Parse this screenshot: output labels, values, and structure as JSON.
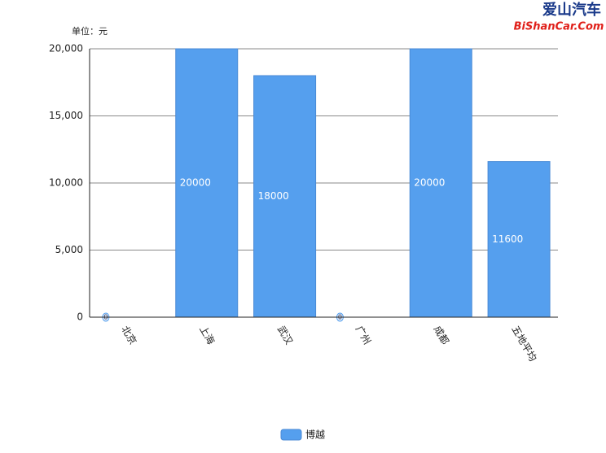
{
  "watermark": {
    "name": "爱山汽车",
    "site": "BiShanCar.Com"
  },
  "chart_data": {
    "type": "bar",
    "y_label": "单位：元",
    "categories": [
      "北京",
      "上海",
      "武汉",
      "广州",
      "成都",
      "五地平均"
    ],
    "series": [
      {
        "name": "博越",
        "color": "#559fee",
        "values": [
          0,
          20000,
          18000,
          0,
          20000,
          11600
        ]
      }
    ],
    "ylim": [
      0,
      20000
    ],
    "yticks": [
      0,
      {
        "value": 5000,
        "label": "5,000"
      },
      {
        "value": 10000,
        "label": "10,000"
      },
      {
        "value": 15000,
        "label": "15,000"
      },
      {
        "value": 20000,
        "label": "20,000"
      }
    ],
    "grid": true,
    "legend": "bottom"
  }
}
